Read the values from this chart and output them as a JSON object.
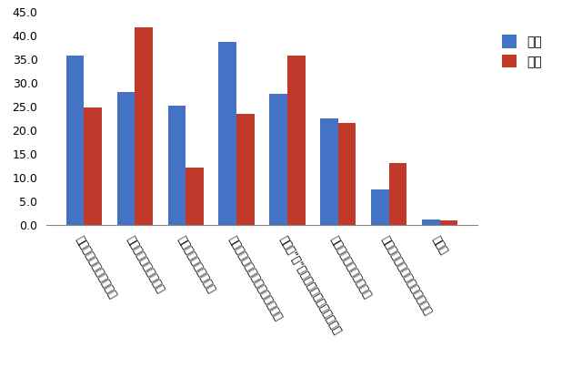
{
  "categories": [
    "未来的デザインの乗り物",
    "環境性能の高い乗り物",
    "運動性能の高い乗り物",
    "新しいテクノロジーを持つ乗り物",
    "日常の\"足\"として利便性の高い乗り物",
    "特に期待するものはない",
    "東京モーターショーを知らない",
    "その他"
  ],
  "male_values": [
    35.7,
    28.0,
    25.2,
    38.7,
    27.7,
    22.5,
    7.5,
    1.2
  ],
  "female_values": [
    24.8,
    41.7,
    12.2,
    23.5,
    35.7,
    21.5,
    13.0,
    0.9
  ],
  "male_color": "#4472C4",
  "female_color": "#C0392B",
  "male_label": "男性",
  "female_label": "女性",
  "ylim": [
    0,
    45.0
  ],
  "yticks": [
    0.0,
    5.0,
    10.0,
    15.0,
    20.0,
    25.0,
    30.0,
    35.0,
    40.0,
    45.0
  ],
  "bar_width": 0.35,
  "figsize": [
    6.4,
    4.26
  ],
  "dpi": 100,
  "bg_color": "#FFFFFF"
}
